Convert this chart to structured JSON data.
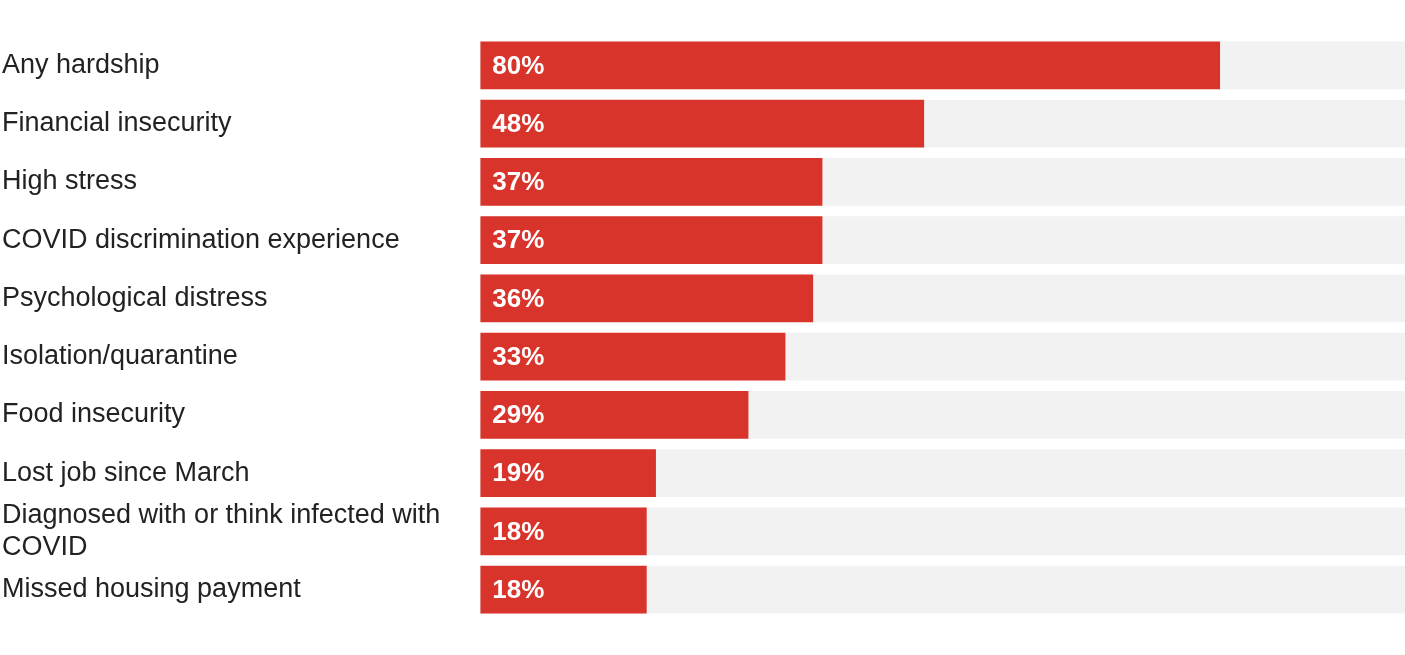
{
  "chart_data": {
    "type": "bar",
    "orientation": "horizontal",
    "categories": [
      "Any hardship",
      "Financial insecurity",
      "High stress",
      "COVID discrimination experience",
      "Psychological distress",
      "Isolation/quarantine",
      "Food insecurity",
      "Lost job since March",
      "Diagnosed with or think infected with COVID",
      "Missed housing payment"
    ],
    "values": [
      80,
      48,
      37,
      37,
      36,
      33,
      29,
      19,
      18,
      18
    ],
    "value_labels": [
      "80%",
      "48%",
      "37%",
      "37%",
      "36%",
      "33%",
      "29%",
      "19%",
      "18%",
      "18%"
    ],
    "color": "#d9342b",
    "xlim": [
      0,
      100
    ],
    "grid": false,
    "legend": false,
    "tick_labels": "y"
  }
}
